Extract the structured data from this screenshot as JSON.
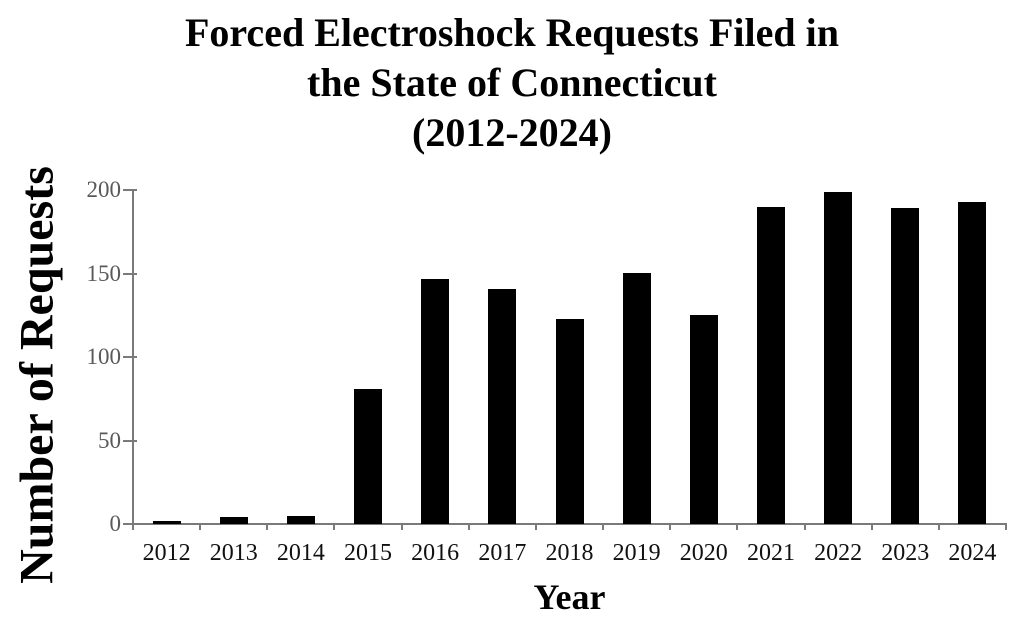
{
  "chart_data": {
    "type": "bar",
    "title_lines": [
      "Forced Electroshock Requests Filed in",
      "the State of Connecticut",
      "(2012-2024)"
    ],
    "title": "Forced Electroshock Requests Filed in the State of Connecticut (2012-2024)",
    "xlabel": "Year",
    "ylabel": "Number of Requests",
    "categories": [
      "2012",
      "2013",
      "2014",
      "2015",
      "2016",
      "2017",
      "2018",
      "2019",
      "2020",
      "2021",
      "2022",
      "2023",
      "2024"
    ],
    "values": [
      2,
      4,
      5,
      81,
      147,
      141,
      123,
      150,
      125,
      190,
      199,
      189,
      193
    ],
    "ylim": [
      0,
      200
    ],
    "yticks": [
      0,
      50,
      100,
      150,
      200
    ],
    "grid": false,
    "legend": null,
    "colors": {
      "bar": "#000000",
      "axis": "#7a7a7a",
      "ytick_label": "#595959",
      "xtick_label": "#111111",
      "title": "#000000"
    }
  }
}
